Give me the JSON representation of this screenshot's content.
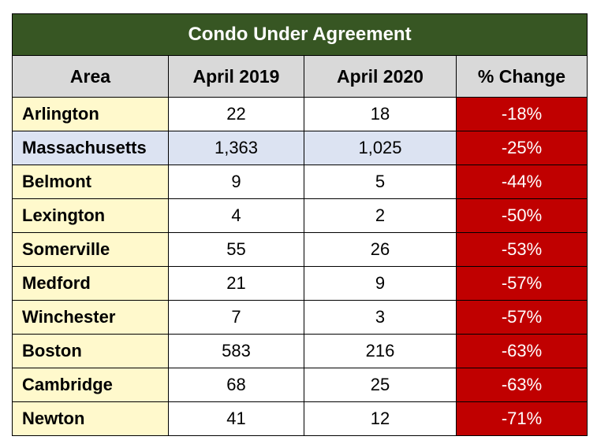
{
  "title": "Condo Under Agreement",
  "headers": [
    "Area",
    "April 2019",
    "April 2020",
    "% Change"
  ],
  "rows": [
    {
      "area": "Arlington",
      "april_2019": "22",
      "april_2020": "18",
      "change": "-18%"
    },
    {
      "area": "Massachusetts",
      "april_2019": "1,363",
      "april_2020": "1,025",
      "change": "-25%"
    },
    {
      "area": "Belmont",
      "april_2019": "9",
      "april_2020": "5",
      "change": "-44%"
    },
    {
      "area": "Lexington",
      "april_2019": "4",
      "april_2020": "2",
      "change": "-50%"
    },
    {
      "area": "Somerville",
      "april_2019": "55",
      "april_2020": "26",
      "change": "-53%"
    },
    {
      "area": "Medford",
      "april_2019": "21",
      "april_2020": "9",
      "change": "-57%"
    },
    {
      "area": "Winchester",
      "april_2019": "7",
      "april_2020": "3",
      "change": "-57%"
    },
    {
      "area": "Boston",
      "april_2019": "583",
      "april_2020": "216",
      "change": "-63%"
    },
    {
      "area": "Cambridge",
      "april_2019": "68",
      "april_2020": "25",
      "change": "-63%"
    },
    {
      "area": "Newton",
      "april_2019": "41",
      "april_2020": "12",
      "change": "-71%"
    }
  ],
  "colors": {
    "title_bg": "#375623",
    "header_bg": "#d9d9d9",
    "area_bg": "#fff9cc",
    "highlight_bg": "#dce3f2",
    "change_bg": "#c00000"
  }
}
